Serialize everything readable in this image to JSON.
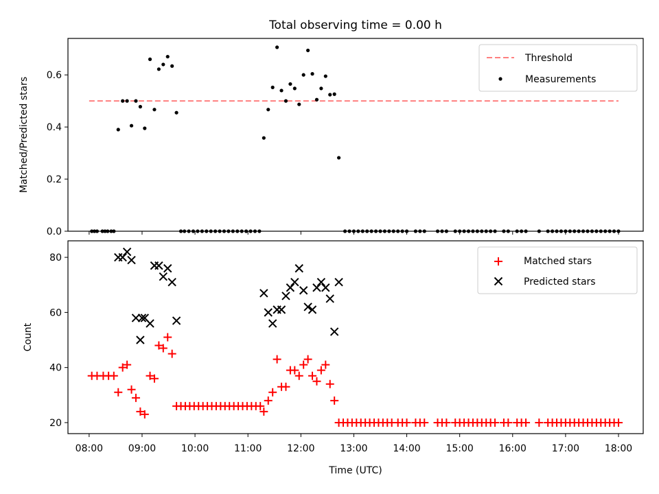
{
  "title": "Total observing time = 0.00 h",
  "colors": {
    "threshold": "#ff7f7f",
    "measurement": "#000000",
    "matched": "#ff0000",
    "predicted": "#000000"
  },
  "chart_data": [
    {
      "type": "scatter",
      "ylabel": "Matched/Predicted stars",
      "xlim": [
        "07:36",
        "18:28"
      ],
      "ylim": [
        0,
        0.74
      ],
      "yticks": [
        "0.0",
        "0.2",
        "0.4",
        "0.6"
      ],
      "legend": {
        "placement": "top-right",
        "entries": [
          "Threshold",
          "Measurements"
        ]
      },
      "threshold": {
        "name": "Threshold",
        "value": 0.5,
        "x_range": [
          "08:00",
          "18:00"
        ],
        "style": "dashed"
      },
      "series": [
        {
          "name": "Measurements",
          "points": [
            [
              "08:03",
              0
            ],
            [
              "08:06",
              0
            ],
            [
              "08:09",
              0
            ],
            [
              "08:15",
              0
            ],
            [
              "08:18",
              0
            ],
            [
              "08:21",
              0
            ],
            [
              "08:25",
              0
            ],
            [
              "08:28",
              0
            ],
            [
              "08:33",
              0.39
            ],
            [
              "08:38",
              0.5
            ],
            [
              "08:43",
              0.5
            ],
            [
              "08:48",
              0.405
            ],
            [
              "08:53",
              0.5
            ],
            [
              "08:58",
              0.478
            ],
            [
              "09:03",
              0.395
            ],
            [
              "09:09",
              0.66
            ],
            [
              "09:14",
              0.467
            ],
            [
              "09:19",
              0.622
            ],
            [
              "09:24",
              0.64
            ],
            [
              "09:29",
              0.67
            ],
            [
              "09:34",
              0.634
            ],
            [
              "09:39",
              0.455
            ],
            [
              "09:44",
              0
            ],
            [
              "09:48",
              0
            ],
            [
              "09:53",
              0
            ],
            [
              "09:58",
              0
            ],
            [
              "10:03",
              0
            ],
            [
              "10:08",
              0
            ],
            [
              "10:13",
              0
            ],
            [
              "10:18",
              0
            ],
            [
              "10:23",
              0
            ],
            [
              "10:28",
              0
            ],
            [
              "10:33",
              0
            ],
            [
              "10:38",
              0
            ],
            [
              "10:43",
              0
            ],
            [
              "10:48",
              0
            ],
            [
              "10:53",
              0
            ],
            [
              "10:58",
              0
            ],
            [
              "11:03",
              0
            ],
            [
              "11:08",
              0
            ],
            [
              "11:13",
              0
            ],
            [
              "11:18",
              0.358
            ],
            [
              "11:23",
              0.467
            ],
            [
              "11:28",
              0.552
            ],
            [
              "11:33",
              0.706
            ],
            [
              "11:38",
              0.54
            ],
            [
              "11:43",
              0.5
            ],
            [
              "11:48",
              0.565
            ],
            [
              "11:53",
              0.548
            ],
            [
              "11:58",
              0.487
            ],
            [
              "12:03",
              0.6
            ],
            [
              "12:08",
              0.694
            ],
            [
              "12:13",
              0.604
            ],
            [
              "12:18",
              0.505
            ],
            [
              "12:23",
              0.548
            ],
            [
              "12:28",
              0.595
            ],
            [
              "12:33",
              0.524
            ],
            [
              "12:38",
              0.526
            ],
            [
              "12:43",
              0.282
            ],
            [
              "12:50",
              0
            ],
            [
              "12:55",
              0
            ],
            [
              "13:00",
              0
            ],
            [
              "13:05",
              0
            ],
            [
              "13:10",
              0
            ],
            [
              "13:15",
              0
            ],
            [
              "13:20",
              0
            ],
            [
              "13:25",
              0
            ],
            [
              "13:30",
              0
            ],
            [
              "13:35",
              0
            ],
            [
              "13:40",
              0
            ],
            [
              "13:45",
              0
            ],
            [
              "13:50",
              0
            ],
            [
              "13:55",
              0
            ],
            [
              "14:00",
              0
            ],
            [
              "14:10",
              0
            ],
            [
              "14:15",
              0
            ],
            [
              "14:20",
              0
            ],
            [
              "14:35",
              0
            ],
            [
              "14:40",
              0
            ],
            [
              "14:45",
              0
            ],
            [
              "14:55",
              0
            ],
            [
              "15:00",
              0
            ],
            [
              "15:05",
              0
            ],
            [
              "15:10",
              0
            ],
            [
              "15:15",
              0
            ],
            [
              "15:20",
              0
            ],
            [
              "15:25",
              0
            ],
            [
              "15:30",
              0
            ],
            [
              "15:35",
              0
            ],
            [
              "15:40",
              0
            ],
            [
              "15:50",
              0
            ],
            [
              "15:55",
              0
            ],
            [
              "16:05",
              0
            ],
            [
              "16:10",
              0
            ],
            [
              "16:15",
              0
            ],
            [
              "16:30",
              0
            ],
            [
              "16:40",
              0
            ],
            [
              "16:45",
              0
            ],
            [
              "16:50",
              0
            ],
            [
              "16:55",
              0
            ],
            [
              "17:00",
              0
            ],
            [
              "17:05",
              0
            ],
            [
              "17:10",
              0
            ],
            [
              "17:15",
              0
            ],
            [
              "17:20",
              0
            ],
            [
              "17:25",
              0
            ],
            [
              "17:30",
              0
            ],
            [
              "17:35",
              0
            ],
            [
              "17:40",
              0
            ],
            [
              "17:45",
              0
            ],
            [
              "17:50",
              0
            ],
            [
              "17:55",
              0
            ],
            [
              "18:00",
              0
            ]
          ]
        }
      ]
    },
    {
      "type": "scatter",
      "xlabel": "Time (UTC)",
      "ylabel": "Count",
      "xlim": [
        "07:36",
        "18:28"
      ],
      "ylim": [
        16,
        86
      ],
      "xticks": [
        "08:00",
        "09:00",
        "10:00",
        "11:00",
        "12:00",
        "13:00",
        "14:00",
        "15:00",
        "16:00",
        "17:00",
        "18:00"
      ],
      "yticks": [
        "20",
        "40",
        "60",
        "80"
      ],
      "legend": {
        "placement": "top-right",
        "entries": [
          "Matched stars",
          "Predicted stars"
        ]
      },
      "series": [
        {
          "name": "Matched stars",
          "points": [
            [
              "08:03",
              37
            ],
            [
              "08:09",
              37
            ],
            [
              "08:16",
              37
            ],
            [
              "08:22",
              37
            ],
            [
              "08:28",
              37
            ],
            [
              "08:33",
              31
            ],
            [
              "08:38",
              40
            ],
            [
              "08:43",
              41
            ],
            [
              "08:48",
              32
            ],
            [
              "08:53",
              29
            ],
            [
              "08:58",
              24
            ],
            [
              "09:03",
              23
            ],
            [
              "09:09",
              37
            ],
            [
              "09:14",
              36
            ],
            [
              "09:19",
              48
            ],
            [
              "09:24",
              47
            ],
            [
              "09:29",
              51
            ],
            [
              "09:34",
              45
            ],
            [
              "09:39",
              26
            ],
            [
              "09:44",
              26
            ],
            [
              "09:49",
              26
            ],
            [
              "09:54",
              26
            ],
            [
              "09:59",
              26
            ],
            [
              "10:04",
              26
            ],
            [
              "10:09",
              26
            ],
            [
              "10:14",
              26
            ],
            [
              "10:19",
              26
            ],
            [
              "10:24",
              26
            ],
            [
              "10:29",
              26
            ],
            [
              "10:34",
              26
            ],
            [
              "10:39",
              26
            ],
            [
              "10:44",
              26
            ],
            [
              "10:49",
              26
            ],
            [
              "10:54",
              26
            ],
            [
              "10:59",
              26
            ],
            [
              "11:04",
              26
            ],
            [
              "11:09",
              26
            ],
            [
              "11:14",
              26
            ],
            [
              "11:18",
              24
            ],
            [
              "11:23",
              28
            ],
            [
              "11:28",
              31
            ],
            [
              "11:33",
              43
            ],
            [
              "11:38",
              33
            ],
            [
              "11:43",
              33
            ],
            [
              "11:48",
              39
            ],
            [
              "11:53",
              39
            ],
            [
              "11:58",
              37
            ],
            [
              "12:03",
              41
            ],
            [
              "12:08",
              43
            ],
            [
              "12:13",
              37
            ],
            [
              "12:18",
              35
            ],
            [
              "12:23",
              39
            ],
            [
              "12:28",
              41
            ],
            [
              "12:33",
              34
            ],
            [
              "12:38",
              28
            ],
            [
              "12:43",
              20
            ],
            [
              "12:48",
              20
            ],
            [
              "12:53",
              20
            ],
            [
              "12:58",
              20
            ],
            [
              "13:03",
              20
            ],
            [
              "13:08",
              20
            ],
            [
              "13:13",
              20
            ],
            [
              "13:18",
              20
            ],
            [
              "13:23",
              20
            ],
            [
              "13:28",
              20
            ],
            [
              "13:33",
              20
            ],
            [
              "13:38",
              20
            ],
            [
              "13:43",
              20
            ],
            [
              "13:50",
              20
            ],
            [
              "13:55",
              20
            ],
            [
              "14:00",
              20
            ],
            [
              "14:10",
              20
            ],
            [
              "14:15",
              20
            ],
            [
              "14:20",
              20
            ],
            [
              "14:35",
              20
            ],
            [
              "14:40",
              20
            ],
            [
              "14:45",
              20
            ],
            [
              "14:55",
              20
            ],
            [
              "15:00",
              20
            ],
            [
              "15:05",
              20
            ],
            [
              "15:10",
              20
            ],
            [
              "15:15",
              20
            ],
            [
              "15:20",
              20
            ],
            [
              "15:25",
              20
            ],
            [
              "15:30",
              20
            ],
            [
              "15:35",
              20
            ],
            [
              "15:40",
              20
            ],
            [
              "15:50",
              20
            ],
            [
              "15:55",
              20
            ],
            [
              "16:05",
              20
            ],
            [
              "16:10",
              20
            ],
            [
              "16:15",
              20
            ],
            [
              "16:30",
              20
            ],
            [
              "16:40",
              20
            ],
            [
              "16:45",
              20
            ],
            [
              "16:50",
              20
            ],
            [
              "16:55",
              20
            ],
            [
              "17:00",
              20
            ],
            [
              "17:05",
              20
            ],
            [
              "17:10",
              20
            ],
            [
              "17:15",
              20
            ],
            [
              "17:20",
              20
            ],
            [
              "17:25",
              20
            ],
            [
              "17:30",
              20
            ],
            [
              "17:35",
              20
            ],
            [
              "17:40",
              20
            ],
            [
              "17:45",
              20
            ],
            [
              "17:50",
              20
            ],
            [
              "17:55",
              20
            ],
            [
              "18:00",
              20
            ]
          ]
        },
        {
          "name": "Predicted stars",
          "points": [
            [
              "08:33",
              80
            ],
            [
              "08:38",
              80
            ],
            [
              "08:43",
              82
            ],
            [
              "08:48",
              79
            ],
            [
              "08:53",
              58
            ],
            [
              "08:58",
              50
            ],
            [
              "09:00",
              58
            ],
            [
              "09:03",
              58
            ],
            [
              "09:09",
              56
            ],
            [
              "09:14",
              77
            ],
            [
              "09:19",
              77
            ],
            [
              "09:24",
              73
            ],
            [
              "09:29",
              76
            ],
            [
              "09:34",
              71
            ],
            [
              "09:39",
              57
            ],
            [
              "11:18",
              67
            ],
            [
              "11:23",
              60
            ],
            [
              "11:28",
              56
            ],
            [
              "11:33",
              61
            ],
            [
              "11:38",
              61
            ],
            [
              "11:43",
              66
            ],
            [
              "11:48",
              69
            ],
            [
              "11:53",
              71
            ],
            [
              "11:58",
              76
            ],
            [
              "12:03",
              68
            ],
            [
              "12:08",
              62
            ],
            [
              "12:13",
              61
            ],
            [
              "12:18",
              69
            ],
            [
              "12:23",
              71
            ],
            [
              "12:28",
              69
            ],
            [
              "12:33",
              65
            ],
            [
              "12:38",
              53
            ],
            [
              "12:43",
              71
            ]
          ]
        }
      ]
    }
  ]
}
